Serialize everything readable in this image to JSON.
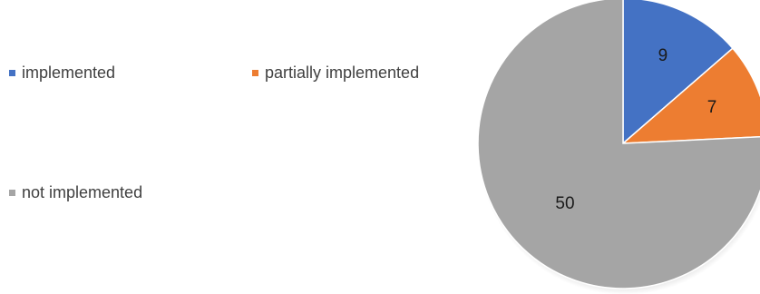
{
  "chart_data": {
    "type": "pie",
    "categories": [
      "implemented",
      "partially implemented",
      "not implemented"
    ],
    "values": [
      9,
      7,
      50
    ],
    "colors": [
      "#4472C4",
      "#ED7D31",
      "#A5A5A5"
    ],
    "legend": "left",
    "data_labels": [
      "9",
      "7",
      "50"
    ]
  }
}
